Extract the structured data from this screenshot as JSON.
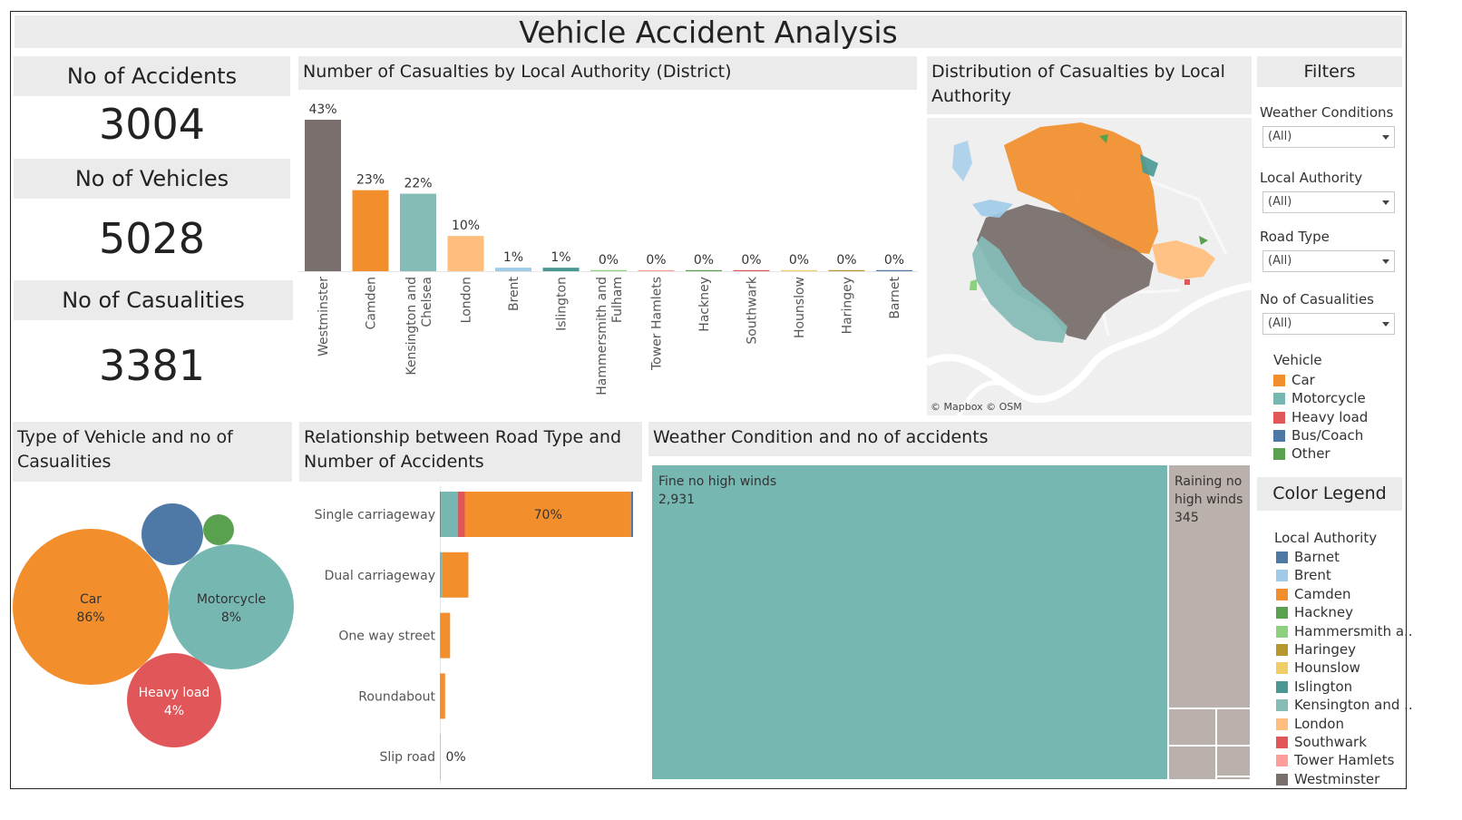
{
  "title": "Vehicle Accident Analysis",
  "kpis": {
    "accidents_label": "No of Accidents",
    "accidents_value": "3004",
    "vehicles_label": "No of Vehicles",
    "vehicles_value": "5028",
    "casualties_label": "No of Casualities",
    "casualties_value": "3381"
  },
  "sections": {
    "casualties_by_district": "Number of Casualties by Local Authority (District)",
    "map": "Distribution of Casualties by Local Authority",
    "vehicle_bubbles": "Type of Vehicle and no of Casualities",
    "road_type": "Relationship between Road Type and Number of Accidents",
    "weather": "Weather Condition and no of accidents"
  },
  "map": {
    "attribution": "© Mapbox © OSM"
  },
  "filters": {
    "title": "Filters",
    "items": [
      {
        "label": "Weather Conditions",
        "value": "(All)"
      },
      {
        "label": "Local Authority",
        "value": "(All)"
      },
      {
        "label": "Road Type",
        "value": "(All)"
      },
      {
        "label": "No of Casualities",
        "value": "(All)"
      }
    ]
  },
  "vehicle_legend": {
    "title": "Vehicle",
    "items": [
      {
        "label": "Car",
        "color": "#f28e2b"
      },
      {
        "label": "Motorcycle",
        "color": "#76b7b2"
      },
      {
        "label": "Heavy load",
        "color": "#e15759"
      },
      {
        "label": "Bus/Coach",
        "color": "#4e79a7"
      },
      {
        "label": "Other",
        "color": "#59a14f"
      }
    ]
  },
  "color_legend": {
    "title": "Color Legend",
    "subtitle": "Local Authority",
    "items": [
      {
        "label": "Barnet",
        "color": "#4e79a7"
      },
      {
        "label": "Brent",
        "color": "#a0cbe8"
      },
      {
        "label": "Camden",
        "color": "#f28e2b"
      },
      {
        "label": "Hackney",
        "color": "#59a14f"
      },
      {
        "label": "Hammersmith a..",
        "color": "#8cd17d"
      },
      {
        "label": "Haringey",
        "color": "#b6992d"
      },
      {
        "label": "Hounslow",
        "color": "#f1ce63"
      },
      {
        "label": "Islington",
        "color": "#499894"
      },
      {
        "label": "Kensington and ..",
        "color": "#86bcb6"
      },
      {
        "label": "London",
        "color": "#ffbe7d"
      },
      {
        "label": "Southwark",
        "color": "#e15759"
      },
      {
        "label": "Tower Hamlets",
        "color": "#ff9d9a"
      },
      {
        "label": "Westminster",
        "color": "#79706e"
      }
    ]
  },
  "chart_data": [
    {
      "type": "bar",
      "name": "casualties_by_district",
      "categories": [
        "Westminster",
        "Camden",
        "Kensington and Chelsea",
        "London",
        "Brent",
        "Islington",
        "Hammersmith and Fulham",
        "Tower Hamlets",
        "Hackney",
        "Southwark",
        "Hounslow",
        "Haringey",
        "Barnet"
      ],
      "values": [
        43,
        23,
        22,
        10,
        1,
        1,
        0,
        0,
        0,
        0,
        0,
        0,
        0
      ],
      "labels": [
        "43%",
        "23%",
        "22%",
        "10%",
        "1%",
        "1%",
        "0%",
        "0%",
        "0%",
        "0%",
        "0%",
        "0%",
        "0%"
      ],
      "colors": [
        "#79706e",
        "#f28e2b",
        "#86bcb6",
        "#ffbe7d",
        "#a0cbe8",
        "#499894",
        "#8cd17d",
        "#ff9d9a",
        "#59a14f",
        "#e15759",
        "#f1ce63",
        "#b6992d",
        "#4e79a7"
      ],
      "ylim": [
        0,
        43
      ]
    },
    {
      "type": "bubble",
      "name": "vehicle_type",
      "items": [
        {
          "label": "Car",
          "pct": "86%",
          "value": 86,
          "color": "#f28e2b"
        },
        {
          "label": "Motorcycle",
          "pct": "8%",
          "value": 8,
          "color": "#76b7b2"
        },
        {
          "label": "Heavy load",
          "pct": "4%",
          "value": 4,
          "color": "#e15759"
        },
        {
          "label": "Bus/Coach",
          "pct": "",
          "value": 3,
          "color": "#4e79a7"
        },
        {
          "label": "Other",
          "pct": "",
          "value": 1,
          "color": "#59a14f"
        }
      ]
    },
    {
      "type": "bar",
      "orientation": "horizontal",
      "stacked": true,
      "name": "road_type",
      "categories": [
        "Single carriageway",
        "Dual carriageway",
        "One way street",
        "Roundabout",
        "Slip road"
      ],
      "series": [
        {
          "name": "Other",
          "color": "#59a14f",
          "values": [
            0.5,
            0,
            0,
            0,
            0
          ]
        },
        {
          "name": "Motorcycle",
          "color": "#76b7b2",
          "values": [
            7,
            1,
            0.3,
            0.2,
            0.2
          ]
        },
        {
          "name": "Heavy load",
          "color": "#e15759",
          "values": [
            3,
            0,
            0,
            0,
            0
          ]
        },
        {
          "name": "Car",
          "color": "#f28e2b",
          "values": [
            70,
            11,
            4,
            2,
            0
          ]
        },
        {
          "name": "Bus/Coach",
          "color": "#4e79a7",
          "values": [
            0.8,
            0,
            0,
            0,
            0
          ]
        }
      ],
      "labels": [
        "70%",
        "",
        "",
        "",
        "0%"
      ],
      "xlim": [
        0,
        81.3
      ]
    },
    {
      "type": "treemap",
      "name": "weather",
      "items": [
        {
          "label": "Fine no high winds",
          "value": 2931,
          "value_label": "2,931",
          "color": "#76b7b2"
        },
        {
          "label": "Raining no high winds",
          "value": 345,
          "value_label": "345",
          "color": "#bab0ac"
        }
      ]
    }
  ]
}
